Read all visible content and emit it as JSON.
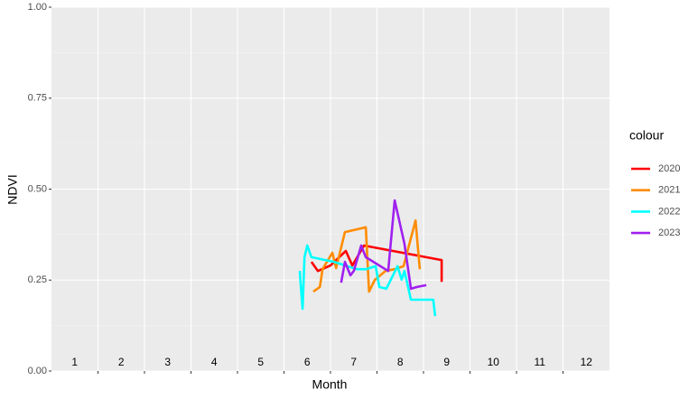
{
  "chart_data": {
    "type": "line",
    "x_label": "Month",
    "y_label": "NDVI",
    "xlim": [
      1,
      13
    ],
    "xticks": [
      2,
      3,
      4,
      5,
      6,
      7,
      8,
      9,
      10,
      11,
      12
    ],
    "ylim": [
      0,
      1
    ],
    "yticks": [
      {
        "value": 0,
        "label": "0.00"
      },
      {
        "value": 0.25,
        "label": "0.25"
      },
      {
        "value": 0.5,
        "label": "0.50"
      },
      {
        "value": 0.75,
        "label": "0.75"
      },
      {
        "value": 1,
        "label": "1.00"
      }
    ],
    "grid": true,
    "annotations": [
      {
        "text": "1",
        "x": 1.5,
        "y": 0.02
      },
      {
        "text": "2",
        "x": 2.5,
        "y": 0.02
      },
      {
        "text": "3",
        "x": 3.5,
        "y": 0.02
      },
      {
        "text": "4",
        "x": 4.5,
        "y": 0.02
      },
      {
        "text": "5",
        "x": 5.5,
        "y": 0.02
      },
      {
        "text": "6",
        "x": 6.5,
        "y": 0.02
      },
      {
        "text": "7",
        "x": 7.5,
        "y": 0.02
      },
      {
        "text": "8",
        "x": 8.5,
        "y": 0.02
      },
      {
        "text": "9",
        "x": 9.5,
        "y": 0.02
      },
      {
        "text": "10",
        "x": 10.5,
        "y": 0.02
      },
      {
        "text": "11",
        "x": 11.5,
        "y": 0.02
      },
      {
        "text": "12",
        "x": 12.5,
        "y": 0.02
      }
    ],
    "legend_title": "colour",
    "legend_position": "right",
    "series": [
      {
        "name": "2020",
        "color": "#ff0000",
        "x": [
          6.59,
          6.73,
          7.0,
          7.33,
          7.47,
          7.72,
          9.39,
          9.39
        ],
        "values": [
          0.3,
          0.275,
          0.29,
          0.33,
          0.29,
          0.345,
          0.305,
          0.245
        ]
      },
      {
        "name": "2021",
        "color": "#ff8c00",
        "x": [
          6.63,
          6.77,
          6.83,
          7.04,
          7.12,
          7.31,
          7.76,
          7.83,
          7.95,
          8.18,
          8.38,
          8.57,
          8.83,
          8.92
        ],
        "values": [
          0.218,
          0.231,
          0.28,
          0.325,
          0.283,
          0.382,
          0.395,
          0.218,
          0.25,
          0.275,
          0.28,
          0.288,
          0.414,
          0.28
        ]
      },
      {
        "name": "2022",
        "color": "#00ffff",
        "x": [
          6.34,
          6.36,
          6.4,
          6.44,
          6.5,
          6.59,
          7.08,
          7.56,
          7.76,
          7.97,
          8.05,
          8.2,
          8.44,
          8.53,
          8.59,
          8.73,
          9.21,
          9.25
        ],
        "values": [
          0.275,
          0.238,
          0.171,
          0.313,
          0.345,
          0.313,
          0.3,
          0.28,
          0.28,
          0.288,
          0.231,
          0.226,
          0.288,
          0.251,
          0.275,
          0.196,
          0.196,
          0.151
        ]
      },
      {
        "name": "2023",
        "color": "#a020f0",
        "x": [
          7.23,
          7.31,
          7.43,
          7.5,
          7.66,
          7.76,
          8.24,
          8.38,
          8.59,
          8.73,
          8.86,
          9.06
        ],
        "values": [
          0.243,
          0.3,
          0.263,
          0.275,
          0.345,
          0.313,
          0.275,
          0.469,
          0.35,
          0.226,
          0.231,
          0.236
        ]
      }
    ]
  }
}
